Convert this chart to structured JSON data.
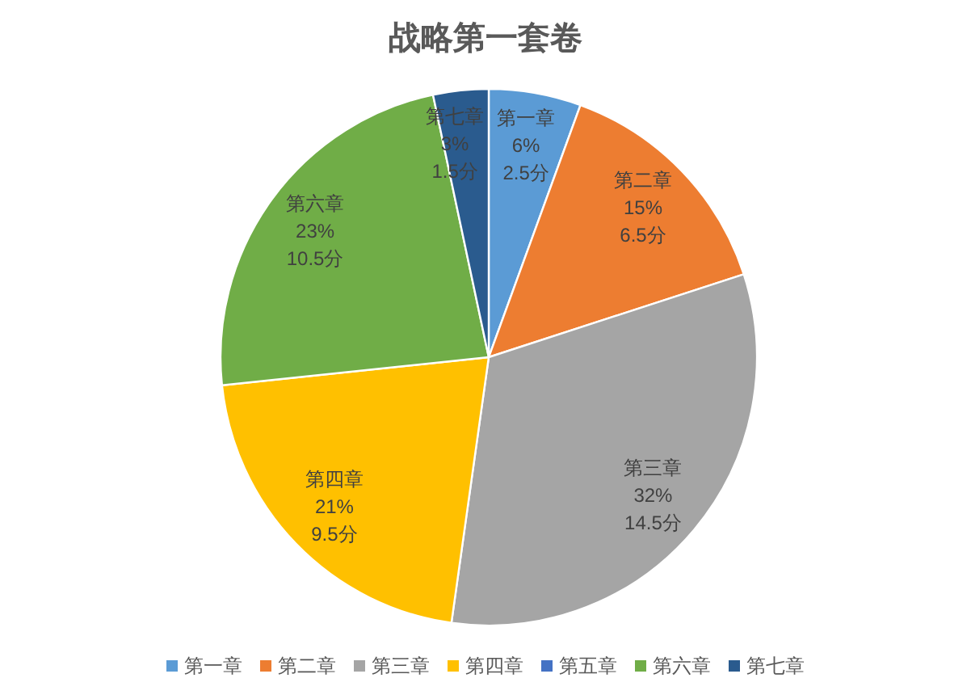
{
  "chart_data": {
    "type": "pie",
    "title": "战略第一套卷",
    "categories": [
      "第一章",
      "第二章",
      "第三章",
      "第四章",
      "第五章",
      "第六章",
      "第七章"
    ],
    "values": [
      2.5,
      6.5,
      14.5,
      9.5,
      0,
      10.5,
      1.5
    ],
    "value_labels": [
      "6%\n2.5分",
      "15%\n6.5分",
      "32%\n14.5分",
      "21%\n9.5分",
      null,
      "23%\n10.5分",
      "3%\n1.5分"
    ],
    "colors": [
      "#5b9bd5",
      "#ed7d31",
      "#a5a5a5",
      "#ffc000",
      "#4472c4",
      "#70ad47",
      "#2a5b8e"
    ],
    "legend": "bottom"
  }
}
